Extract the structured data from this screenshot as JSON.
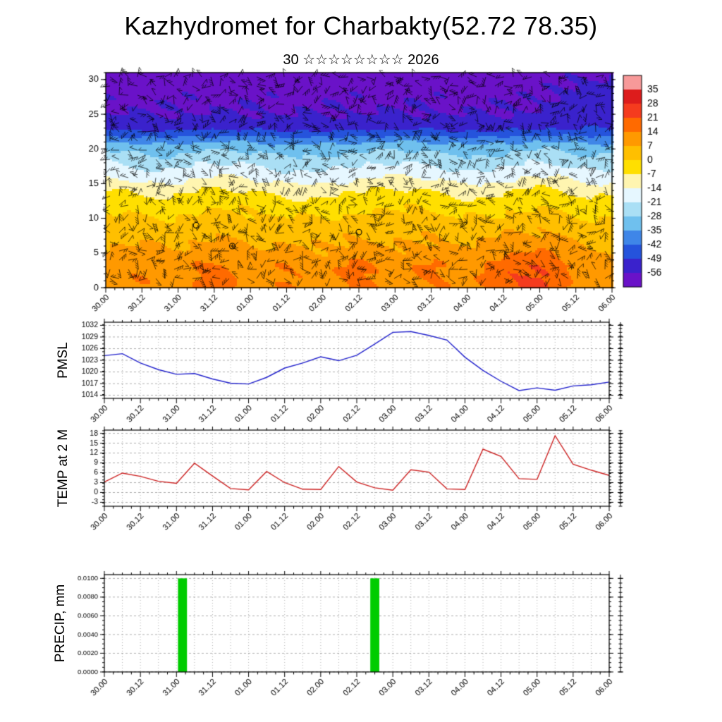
{
  "page": {
    "title": "Kazhydromet for Charbakty(52.72 78.35)",
    "subtitle": "30 ☆☆☆☆☆☆☆☆ 2026"
  },
  "time_axis": {
    "labels": [
      "30.00",
      "30.12",
      "31.00",
      "31.12",
      "01.00",
      "01.12",
      "02.00",
      "02.12",
      "03.00",
      "03.12",
      "04.00",
      "04.12",
      "05.00",
      "05.12",
      "06.00"
    ],
    "major_step_h": 12,
    "minor_step_h": 3,
    "total_h": 168
  },
  "chart_data": [
    {
      "type": "heatmap",
      "name": "vertical-cross-section-temperature-wind",
      "ylabel": "",
      "yticks": [
        0,
        5,
        10,
        15,
        20,
        25,
        30
      ],
      "ylim": [
        0,
        31
      ],
      "overlay": "wind-barbs",
      "profile_levels": [
        0,
        3,
        5,
        8,
        10,
        12,
        14,
        15,
        16,
        18,
        20,
        21,
        22,
        23,
        25,
        31
      ],
      "profile_temps": [
        9,
        10,
        7,
        4,
        1,
        -3,
        -8,
        -12,
        -16,
        -23,
        -30,
        -36,
        -44,
        -51,
        -56,
        -59
      ],
      "surface_warm_anomalies": [
        {
          "h": 10,
          "amp": 4,
          "w": 10
        },
        {
          "h": 36,
          "amp": 8,
          "w": 9
        },
        {
          "h": 60,
          "amp": 5,
          "w": 8
        },
        {
          "h": 84,
          "amp": 7,
          "w": 9
        },
        {
          "h": 108,
          "amp": 6,
          "w": 8
        },
        {
          "h": 130,
          "amp": 6,
          "w": 8
        },
        {
          "h": 143,
          "amp": 13,
          "w": 11
        }
      ],
      "upper_warm_anomaly": {
        "h": 164,
        "amp": 5,
        "lvl": 27
      },
      "calm_markers": [
        {
          "h": 42,
          "lvl": 6
        },
        {
          "h": 84,
          "lvl": 8
        },
        {
          "h": 30,
          "lvl": 9
        }
      ],
      "colorbar": {
        "labels": [
          "35",
          "28",
          "21",
          "14",
          "7",
          "0",
          "-7",
          "-14",
          "-21",
          "-28",
          "-35",
          "-42",
          "-49",
          "-56"
        ],
        "colors": [
          "#f79999",
          "#dd1c1c",
          "#f53b1e",
          "#ff6a00",
          "#ff9900",
          "#ffbf00",
          "#ffdf00",
          "#fff5b0",
          "#e6f7ff",
          "#aadff5",
          "#6fc0ee",
          "#3f86e8",
          "#2553dc",
          "#3a22cc",
          "#6a12c8"
        ],
        "bin_size": 7,
        "max": 35
      }
    },
    {
      "type": "line",
      "name": "pmsl",
      "ylabel": "PMSL",
      "color": "#2222cc",
      "yticks": [
        1014,
        1017,
        1020,
        1023,
        1026,
        1029,
        1032
      ],
      "y_minor": 1,
      "ylim": [
        1013.2,
        1032.8
      ],
      "x_step_h": 6,
      "values": [
        1024.2,
        1024.7,
        1022.3,
        1020.6,
        1019.4,
        1019.6,
        1018.2,
        1017.1,
        1016.9,
        1018.6,
        1021.0,
        1022.3,
        1023.9,
        1022.9,
        1024.3,
        1027.2,
        1030.2,
        1030.4,
        1029.4,
        1028.2,
        1023.8,
        1020.4,
        1017.6,
        1015.2,
        1015.9,
        1015.3,
        1016.4,
        1016.7,
        1017.4
      ]
    },
    {
      "type": "line",
      "name": "temp-at-2m",
      "ylabel": "TEMP at 2 M",
      "color": "#cc2222",
      "yticks": [
        -3,
        0,
        3,
        6,
        9,
        12,
        15,
        18
      ],
      "y_minor": 1,
      "ylim": [
        -4.2,
        19
      ],
      "x_step_h": 6,
      "values": [
        3.2,
        5.9,
        4.9,
        3.4,
        2.8,
        8.9,
        5.0,
        1.2,
        0.8,
        6.4,
        3.0,
        1.0,
        0.9,
        7.9,
        3.2,
        1.4,
        0.7,
        6.9,
        6.2,
        1.1,
        0.9,
        13.2,
        11.0,
        4.2,
        4.0,
        17.3,
        8.6,
        6.8,
        5.2
      ]
    },
    {
      "type": "bar",
      "name": "precip",
      "ylabel": "PRECIP, mm",
      "color": "#00cc00",
      "yticks": [
        "0.0000",
        "0.0020",
        "0.0040",
        "0.0060",
        "0.0080",
        "0.0100"
      ],
      "y_minor": 0.0005,
      "ylim": [
        0,
        0.0104
      ],
      "bars": [
        {
          "h": 26,
          "value": 0.01,
          "width_h": 3
        },
        {
          "h": 90,
          "value": 0.01,
          "width_h": 3
        }
      ]
    }
  ]
}
